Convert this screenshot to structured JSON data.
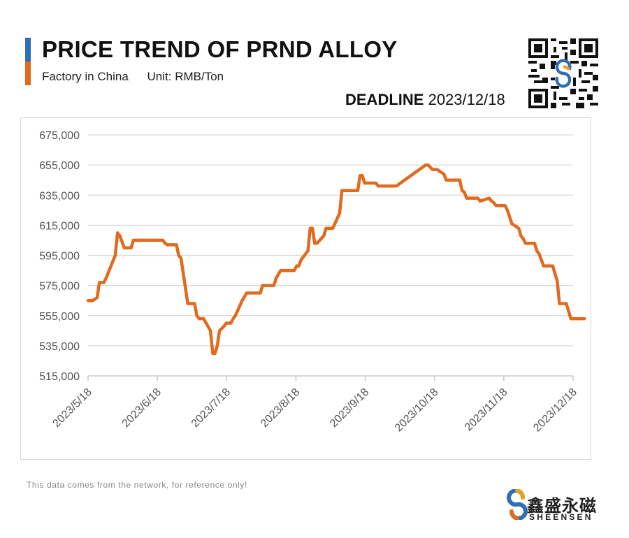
{
  "header": {
    "title": "PRICE TREND OF PRND ALLOY",
    "subtitle_factory": "Factory in China",
    "subtitle_unit": "Unit: RMB/Ton",
    "deadline_label": "DEADLINE",
    "deadline_date": "2023/12/18"
  },
  "footer": {
    "note": "This data comes from the network, for reference only!",
    "brand_cn": "鑫盛永磁",
    "brand_en": "SHEENSEN"
  },
  "colors": {
    "line": "#e06a1e",
    "accent_blue": "#2f6db5",
    "grid": "#d9d9d9",
    "axis": "#c8c8c8",
    "tick_text": "#555555"
  },
  "icons": {
    "qr": "qr-code-icon",
    "logo": "sheensen-logo-icon"
  },
  "chart_data": {
    "type": "line",
    "title": "PRICE TREND OF PRND ALLOY",
    "xlabel": "",
    "ylabel": "",
    "ylim": [
      515000,
      675000
    ],
    "ytick_values": [
      515000,
      535000,
      555000,
      575000,
      595000,
      615000,
      635000,
      655000,
      675000
    ],
    "ytick_labels": [
      "515,000",
      "535,000",
      "555,000",
      "575,000",
      "595,000",
      "615,000",
      "635,000",
      "655,000",
      "675,000"
    ],
    "xtick_labels": [
      "2023/5/18",
      "2023/6/18",
      "2023/7/18",
      "2023/8/18",
      "2023/9/18",
      "2023/10/18",
      "2023/11/18",
      "2023/12/18"
    ],
    "x_start": "2023-05-18",
    "x_end": "2023-12-18",
    "grid": true,
    "legend": "none",
    "series": [
      {
        "points": [
          [
            "2023-05-18",
            565000
          ],
          [
            "2023-05-20",
            565000
          ],
          [
            "2023-05-22",
            567000
          ],
          [
            "2023-05-23",
            577000
          ],
          [
            "2023-05-25",
            577000
          ],
          [
            "2023-05-26",
            580000
          ],
          [
            "2023-05-30",
            595000
          ],
          [
            "2023-05-31",
            610000
          ],
          [
            "2023-06-01",
            608000
          ],
          [
            "2023-06-03",
            600000
          ],
          [
            "2023-06-05",
            600000
          ],
          [
            "2023-06-06",
            600000
          ],
          [
            "2023-06-07",
            605000
          ],
          [
            "2023-06-10",
            605000
          ],
          [
            "2023-06-20",
            605000
          ],
          [
            "2023-06-21",
            603000
          ],
          [
            "2023-06-22",
            602000
          ],
          [
            "2023-06-26",
            602000
          ],
          [
            "2023-06-27",
            595000
          ],
          [
            "2023-06-28",
            593000
          ],
          [
            "2023-07-01",
            563000
          ],
          [
            "2023-07-04",
            563000
          ],
          [
            "2023-07-05",
            555000
          ],
          [
            "2023-07-06",
            553000
          ],
          [
            "2023-07-08",
            553000
          ],
          [
            "2023-07-11",
            545000
          ],
          [
            "2023-07-12",
            530000
          ],
          [
            "2023-07-13",
            530000
          ],
          [
            "2023-07-14",
            535000
          ],
          [
            "2023-07-15",
            545000
          ],
          [
            "2023-07-17",
            548000
          ],
          [
            "2023-07-18",
            550000
          ],
          [
            "2023-07-20",
            550000
          ],
          [
            "2023-07-21",
            553000
          ],
          [
            "2023-07-22",
            555000
          ],
          [
            "2023-07-25",
            565000
          ],
          [
            "2023-07-27",
            570000
          ],
          [
            "2023-08-02",
            570000
          ],
          [
            "2023-08-03",
            575000
          ],
          [
            "2023-08-08",
            575000
          ],
          [
            "2023-08-09",
            580000
          ],
          [
            "2023-08-11",
            585000
          ],
          [
            "2023-08-17",
            585000
          ],
          [
            "2023-08-18",
            588000
          ],
          [
            "2023-08-19",
            588000
          ],
          [
            "2023-08-20",
            592000
          ],
          [
            "2023-08-22",
            596000
          ],
          [
            "2023-08-23",
            598000
          ],
          [
            "2023-08-24",
            613000
          ],
          [
            "2023-08-25",
            613000
          ],
          [
            "2023-08-26",
            603000
          ],
          [
            "2023-08-27",
            603000
          ],
          [
            "2023-08-30",
            608000
          ],
          [
            "2023-08-31",
            613000
          ],
          [
            "2023-09-03",
            613000
          ],
          [
            "2023-09-06",
            623000
          ],
          [
            "2023-09-07",
            638000
          ],
          [
            "2023-09-14",
            638000
          ],
          [
            "2023-09-15",
            648000
          ],
          [
            "2023-09-16",
            648000
          ],
          [
            "2023-09-17",
            643000
          ],
          [
            "2023-09-22",
            643000
          ],
          [
            "2023-09-23",
            641000
          ],
          [
            "2023-10-01",
            641000
          ],
          [
            "2023-10-14",
            655000
          ],
          [
            "2023-10-15",
            655000
          ],
          [
            "2023-10-17",
            652000
          ],
          [
            "2023-10-19",
            652000
          ],
          [
            "2023-10-22",
            649000
          ],
          [
            "2023-10-23",
            645000
          ],
          [
            "2023-10-29",
            645000
          ],
          [
            "2023-10-30",
            638000
          ],
          [
            "2023-10-31",
            637000
          ],
          [
            "2023-11-01",
            633000
          ],
          [
            "2023-11-06",
            633000
          ],
          [
            "2023-11-07",
            631000
          ],
          [
            "2023-11-11",
            633000
          ],
          [
            "2023-11-12",
            631000
          ],
          [
            "2023-11-13",
            630000
          ],
          [
            "2023-11-14",
            628000
          ],
          [
            "2023-11-18",
            628000
          ],
          [
            "2023-11-19",
            625000
          ],
          [
            "2023-11-21",
            616000
          ],
          [
            "2023-11-24",
            613000
          ],
          [
            "2023-11-25",
            608000
          ],
          [
            "2023-11-26",
            606000
          ],
          [
            "2023-11-27",
            603000
          ],
          [
            "2023-12-01",
            603000
          ],
          [
            "2023-12-02",
            598000
          ],
          [
            "2023-12-03",
            596000
          ],
          [
            "2023-12-05",
            588000
          ],
          [
            "2023-12-09",
            588000
          ],
          [
            "2023-12-11",
            578000
          ],
          [
            "2023-12-12",
            563000
          ],
          [
            "2023-12-15",
            563000
          ],
          [
            "2023-12-17",
            553000
          ],
          [
            "2023-12-18",
            553000
          ],
          [
            "2023-12-23",
            553000
          ]
        ]
      }
    ]
  }
}
